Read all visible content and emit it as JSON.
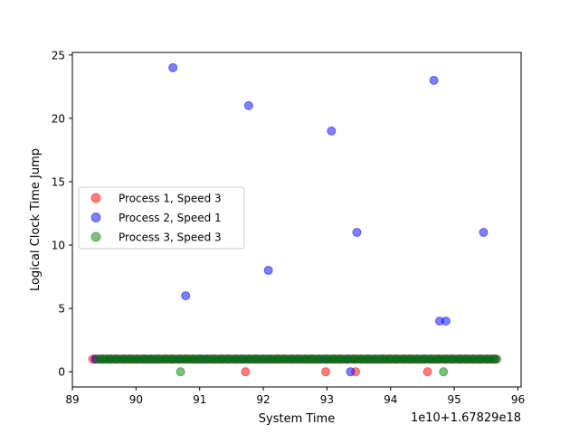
{
  "chart_data": {
    "type": "scatter",
    "xlabel": "System Time",
    "ylabel": "Logical Clock Time Jump",
    "offset_text": "1e10+1.67829e18",
    "xlim": [
      89.0,
      96.05
    ],
    "ylim": [
      -1.2,
      25.2
    ],
    "xticks": [
      89,
      90,
      91,
      92,
      93,
      94,
      95,
      96
    ],
    "yticks": [
      0,
      5,
      10,
      15,
      20,
      25
    ],
    "legend_position": "center-left",
    "series": [
      {
        "name": "Process 1, Speed 3",
        "color": "#ff0000",
        "points": [
          [
            91.72,
            0
          ],
          [
            92.98,
            0
          ],
          [
            93.45,
            0
          ],
          [
            94.58,
            0
          ]
        ],
        "baseline": {
          "y": 1,
          "from": 89.32,
          "to": 95.68,
          "step": 0.055
        }
      },
      {
        "name": "Process 2, Speed 1",
        "color": "#0000ff",
        "points": [
          [
            90.58,
            24
          ],
          [
            91.77,
            21
          ],
          [
            93.07,
            19
          ],
          [
            94.68,
            23
          ],
          [
            90.78,
            6
          ],
          [
            92.08,
            8
          ],
          [
            93.47,
            11
          ],
          [
            95.46,
            11
          ],
          [
            94.77,
            4
          ],
          [
            94.87,
            4
          ],
          [
            93.37,
            0
          ]
        ],
        "baseline": {
          "y": 1,
          "from": 89.36,
          "to": 95.66,
          "step": 0.11
        }
      },
      {
        "name": "Process 3, Speed 3",
        "color": "#008000",
        "points": [
          [
            90.7,
            0
          ],
          [
            94.83,
            0
          ]
        ],
        "baseline": {
          "y": 1,
          "from": 89.4,
          "to": 95.7,
          "step": 0.055
        }
      }
    ]
  }
}
